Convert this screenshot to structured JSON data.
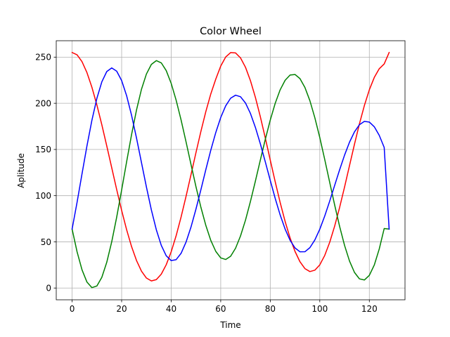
{
  "chart_data": {
    "type": "line",
    "title": "Color Wheel",
    "xlabel": "Time",
    "ylabel": "Aplitude",
    "xlim": [
      -6.4,
      134.4
    ],
    "ylim": [
      -12.75,
      267.75
    ],
    "xticks": [
      0,
      20,
      40,
      60,
      80,
      100,
      120
    ],
    "yticks": [
      0,
      50,
      100,
      150,
      200,
      250
    ],
    "grid": true,
    "period": 64,
    "x": [
      0,
      2,
      4,
      6,
      8,
      10,
      12,
      14,
      16,
      18,
      20,
      22,
      24,
      26,
      28,
      30,
      32,
      34,
      36,
      38,
      40,
      42,
      44,
      46,
      48,
      50,
      52,
      54,
      56,
      58,
      60,
      62,
      64,
      66,
      68,
      70,
      72,
      74,
      76,
      78,
      80,
      82,
      84,
      86,
      88,
      90,
      92,
      94,
      96,
      98,
      100,
      102,
      104,
      106,
      108,
      110,
      112,
      114,
      116,
      118,
      120,
      122,
      124,
      126,
      128
    ],
    "series": [
      {
        "color": "#ff0000",
        "values": [
          255,
          252.5,
          245.1,
          233.2,
          217.3,
          198.2,
          176.8,
          153.8,
          130.2,
          106.6,
          84,
          63.2,
          44.9,
          29.8,
          18.3,
          10.8,
          7.7,
          9.1,
          15,
          25.2,
          39.2,
          56.6,
          76.9,
          99.2,
          122.7,
          146.5,
          169.6,
          191.1,
          210.2,
          226.1,
          240.3,
          250.1,
          254.9,
          254.5,
          249.1,
          239,
          224.5,
          206.4,
          185.4,
          162.4,
          138.6,
          115,
          92.6,
          72.1,
          54.2,
          39.6,
          28.4,
          21,
          17.8,
          19.3,
          25.1,
          35.3,
          49.5,
          67,
          87.2,
          109.4,
          132.6,
          155.7,
          177.7,
          197.6,
          214.6,
          228,
          237.4,
          242.6,
          255
        ]
      },
      {
        "color": "#008000",
        "values": [
          63.8,
          39.3,
          19.7,
          6.4,
          0.4,
          2.2,
          11.6,
          27.9,
          50.1,
          76.7,
          106.1,
          136.5,
          166,
          192.7,
          215.1,
          231.7,
          242.1,
          246.2,
          243.8,
          235.4,
          221.6,
          203.4,
          181.9,
          158.3,
          133.8,
          109.8,
          87.4,
          67.7,
          51.5,
          39.7,
          32.6,
          30.9,
          34.4,
          43.1,
          56.4,
          73.5,
          93.7,
          115.8,
          138.6,
          161,
          181.8,
          200,
          214.6,
          224.9,
          230.6,
          231.2,
          226.7,
          217.1,
          202.8,
          184.4,
          162.9,
          139.1,
          114.4,
          89.9,
          66.7,
          46.1,
          29.2,
          16.9,
          9.9,
          8.7,
          13.7,
          24.9,
          42.2,
          64.4,
          63.8
        ]
      },
      {
        "color": "#0000ff",
        "values": [
          63.8,
          92.7,
          123.6,
          153.9,
          181.7,
          205.3,
          223.2,
          234.4,
          238.3,
          234.8,
          224.6,
          208.3,
          187.1,
          162.4,
          135.9,
          109.4,
          84.6,
          63.1,
          46.2,
          34.9,
          29.7,
          30.7,
          37.6,
          49.7,
          66,
          85.4,
          106.5,
          128.3,
          149.3,
          168.3,
          184.6,
          197.2,
          205.5,
          208.8,
          207.1,
          200.3,
          189,
          173.9,
          156.1,
          136.6,
          116.5,
          97,
          79.1,
          63.8,
          51.7,
          43.4,
          39.2,
          39.3,
          43.7,
          52,
          63.7,
          78,
          94.1,
          111.1,
          128,
          143.9,
          157.9,
          169.1,
          176.8,
          180.4,
          179.7,
          174.6,
          165.3,
          152.2,
          63.8
        ]
      }
    ]
  }
}
